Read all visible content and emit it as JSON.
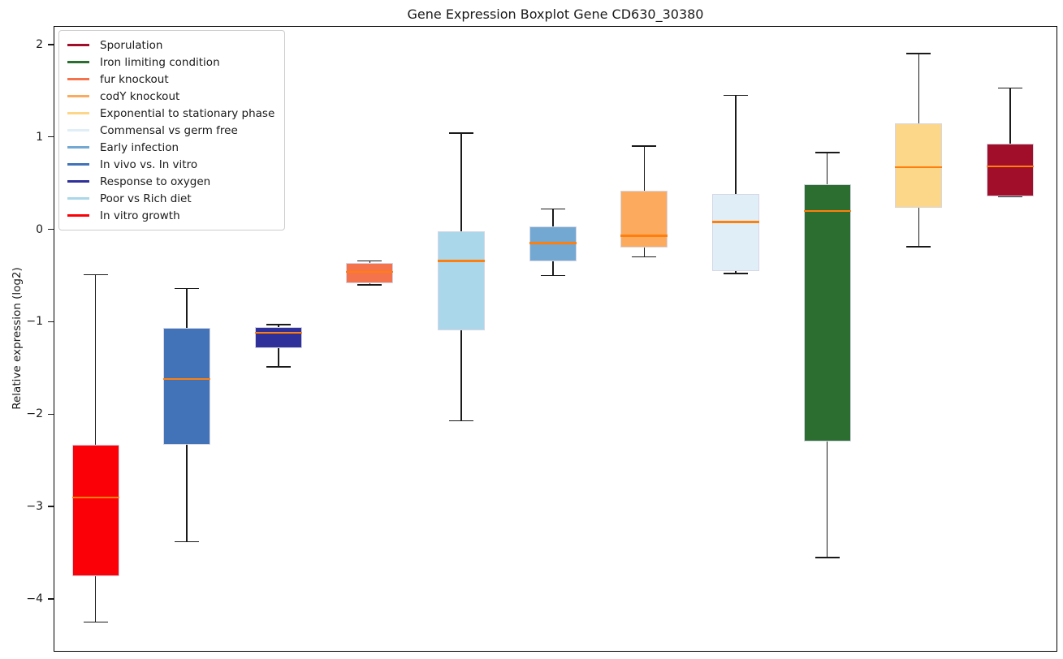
{
  "chart_data": {
    "type": "boxplot",
    "title": "Gene Expression Boxplot Gene CD630_30380",
    "ylabel": "Relative expression (log2)",
    "xlabel": "",
    "ylim": [
      -4.57,
      2.2
    ],
    "grid": false,
    "legend_position": "upper left",
    "x_tick_labels": [],
    "y_ticks": [
      {
        "label": "2",
        "value": 2
      },
      {
        "label": "1",
        "value": 1
      },
      {
        "label": "0",
        "value": 0
      },
      {
        "label": "−1",
        "value": -1
      },
      {
        "label": "−2",
        "value": -2
      },
      {
        "label": "−3",
        "value": -3
      },
      {
        "label": "−4",
        "value": -4
      }
    ],
    "median_color": "#FF7F0E",
    "whisker_color": "#1a1a1a",
    "series": [
      {
        "name": "In vitro growth",
        "color": "#FB0107",
        "whisker_low": -4.25,
        "q1": -3.75,
        "median": -2.9,
        "q3": -2.33,
        "whisker_high": -0.49
      },
      {
        "name": "In vivo vs. In vitro",
        "color": "#4273B8",
        "whisker_low": -3.38,
        "q1": -2.33,
        "median": -1.62,
        "q3": -1.07,
        "whisker_high": -0.64
      },
      {
        "name": "Response to oxygen",
        "color": "#30309A",
        "whisker_low": -1.49,
        "q1": -1.29,
        "median": -1.12,
        "q3": -1.06,
        "whisker_high": -1.03
      },
      {
        "name": "fur knockout",
        "color": "#F4734D",
        "whisker_low": -0.6,
        "q1": -0.58,
        "median": -0.46,
        "q3": -0.36,
        "whisker_high": -0.34
      },
      {
        "name": "Poor vs Rich diet",
        "color": "#AAD7E9",
        "whisker_low": -2.07,
        "q1": -1.09,
        "median": -0.34,
        "q3": -0.02,
        "whisker_high": 1.04
      },
      {
        "name": "Early infection",
        "color": "#72A8D2",
        "whisker_low": -0.5,
        "q1": -0.35,
        "median": -0.15,
        "q3": 0.03,
        "whisker_high": 0.22
      },
      {
        "name": "codY knockout",
        "color": "#FBAA5E",
        "whisker_low": -0.3,
        "q1": -0.2,
        "median": -0.07,
        "q3": 0.42,
        "whisker_high": 0.9
      },
      {
        "name": "Commensal vs germ free",
        "color": "#E0EFF7",
        "whisker_low": -0.48,
        "q1": -0.45,
        "median": 0.08,
        "q3": 0.38,
        "whisker_high": 1.45
      },
      {
        "name": "Iron limiting condition",
        "color": "#2B6E2F",
        "whisker_low": -3.55,
        "q1": -2.3,
        "median": 0.2,
        "q3": 0.49,
        "whisker_high": 0.83
      },
      {
        "name": "Exponential to stationary phase",
        "color": "#FCD78A",
        "whisker_low": -0.19,
        "q1": 0.23,
        "median": 0.67,
        "q3": 1.15,
        "whisker_high": 1.9
      },
      {
        "name": "Sporulation",
        "color": "#A00E2A",
        "whisker_low": 0.35,
        "q1": 0.36,
        "median": 0.68,
        "q3": 0.93,
        "whisker_high": 1.53
      }
    ],
    "legend": [
      {
        "label": "Sporulation",
        "color": "#A00E2A"
      },
      {
        "label": "Iron limiting condition",
        "color": "#2B6E2F"
      },
      {
        "label": "fur knockout",
        "color": "#F4734D"
      },
      {
        "label": "codY knockout",
        "color": "#FBAA5E"
      },
      {
        "label": "Exponential to stationary phase",
        "color": "#FCD78A"
      },
      {
        "label": "Commensal vs germ free",
        "color": "#E0EFF7"
      },
      {
        "label": "Early infection",
        "color": "#72A8D2"
      },
      {
        "label": "In vivo vs. In vitro",
        "color": "#4273B8"
      },
      {
        "label": "Response to oxygen",
        "color": "#30309A"
      },
      {
        "label": "Poor vs Rich diet",
        "color": "#AAD7E9"
      },
      {
        "label": "In vitro growth",
        "color": "#FB0107"
      }
    ]
  }
}
